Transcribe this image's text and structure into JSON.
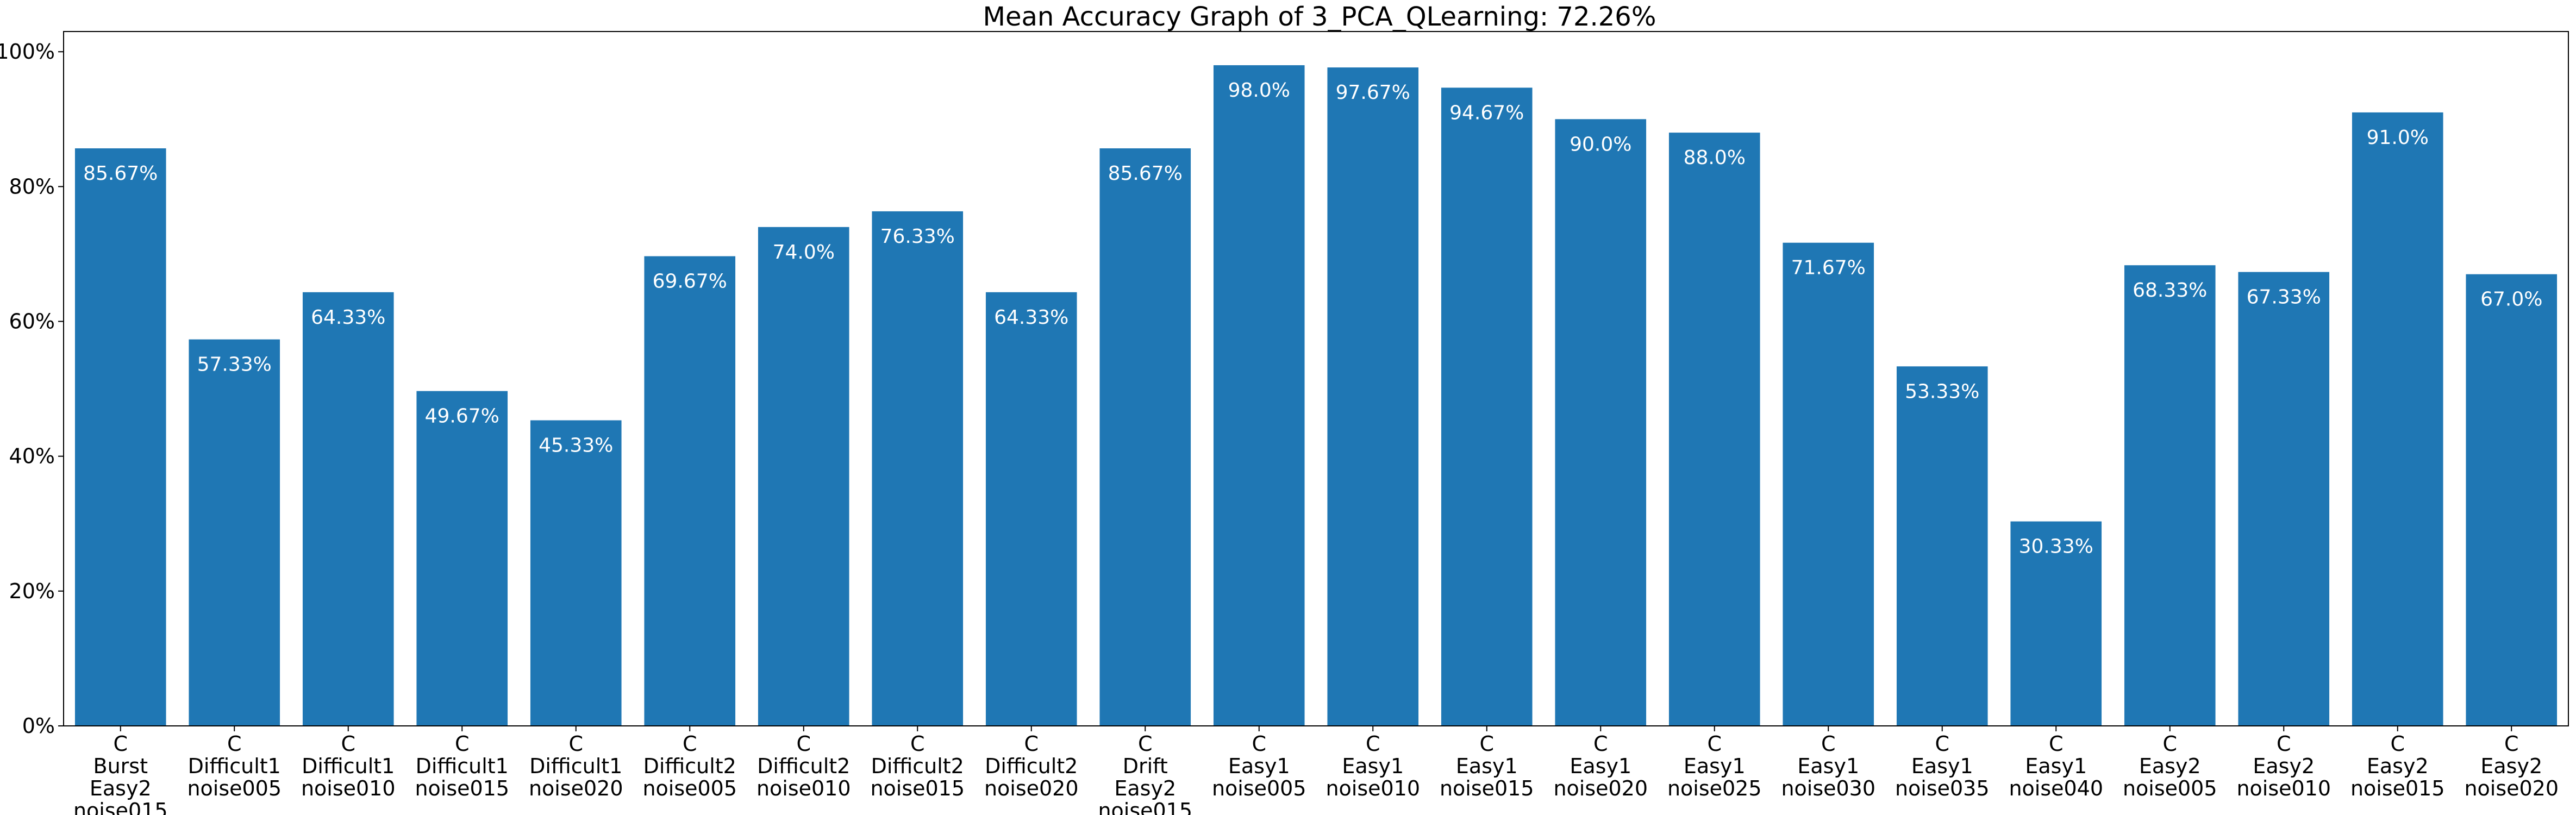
{
  "chart_data": {
    "type": "bar",
    "title": "Mean Accuracy Graph of 3_PCA_QLearning: 72.26%",
    "xlabel": "",
    "ylabel": "",
    "ylim": [
      0,
      103
    ],
    "y_ticks": [
      0,
      20,
      40,
      60,
      80,
      100
    ],
    "y_tick_labels": [
      "0%",
      "20%",
      "40%",
      "60%",
      "80%",
      "100%"
    ],
    "grid": false,
    "bar_color": "#1f77b4",
    "label_color": "#ffffff",
    "categories": [
      [
        "C",
        "Burst",
        "Easy2",
        "noise015"
      ],
      [
        "C",
        "Difficult1",
        "noise005"
      ],
      [
        "C",
        "Difficult1",
        "noise010"
      ],
      [
        "C",
        "Difficult1",
        "noise015"
      ],
      [
        "C",
        "Difficult1",
        "noise020"
      ],
      [
        "C",
        "Difficult2",
        "noise005"
      ],
      [
        "C",
        "Difficult2",
        "noise010"
      ],
      [
        "C",
        "Difficult2",
        "noise015"
      ],
      [
        "C",
        "Difficult2",
        "noise020"
      ],
      [
        "C",
        "Drift",
        "Easy2",
        "noise015"
      ],
      [
        "C",
        "Easy1",
        "noise005"
      ],
      [
        "C",
        "Easy1",
        "noise010"
      ],
      [
        "C",
        "Easy1",
        "noise015"
      ],
      [
        "C",
        "Easy1",
        "noise020"
      ],
      [
        "C",
        "Easy1",
        "noise025"
      ],
      [
        "C",
        "Easy1",
        "noise030"
      ],
      [
        "C",
        "Easy1",
        "noise035"
      ],
      [
        "C",
        "Easy1",
        "noise040"
      ],
      [
        "C",
        "Easy2",
        "noise005"
      ],
      [
        "C",
        "Easy2",
        "noise010"
      ],
      [
        "C",
        "Easy2",
        "noise015"
      ],
      [
        "C",
        "Easy2",
        "noise020"
      ]
    ],
    "values": [
      85.67,
      57.33,
      64.33,
      49.67,
      45.33,
      69.67,
      74.0,
      76.33,
      64.33,
      85.67,
      98.0,
      97.67,
      94.67,
      90.0,
      88.0,
      71.67,
      53.33,
      30.33,
      68.33,
      67.33,
      91.0,
      67.0
    ],
    "data_labels": [
      "85.67%",
      "57.33%",
      "64.33%",
      "49.67%",
      "45.33%",
      "69.67%",
      "74.0%",
      "76.33%",
      "64.33%",
      "85.67%",
      "98.0%",
      "97.67%",
      "94.67%",
      "90.0%",
      "88.0%",
      "71.67%",
      "53.33%",
      "30.33%",
      "68.33%",
      "67.33%",
      "91.0%",
      "67.0%"
    ]
  }
}
